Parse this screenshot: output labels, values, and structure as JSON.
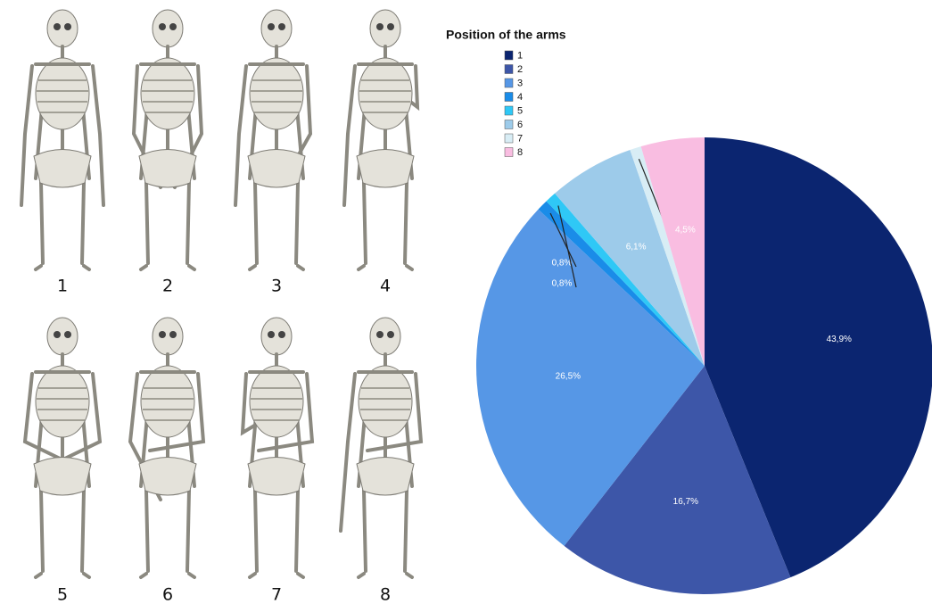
{
  "panel_labels": [
    "1",
    "2",
    "3",
    "4",
    "5",
    "6",
    "7",
    "8"
  ],
  "chart_data": {
    "type": "pie",
    "legend_title": "Position of the arms",
    "categories": [
      "1",
      "2",
      "3",
      "4",
      "5",
      "6",
      "7",
      "8"
    ],
    "values": [
      43.9,
      16.7,
      26.5,
      0.8,
      0.8,
      6.1,
      0.8,
      4.5
    ],
    "value_labels": [
      "43,9%",
      "16,7%",
      "26,5%",
      "0,8%",
      "0,8%",
      "6,1%",
      "0,8%",
      "4,5%"
    ],
    "colors": [
      "#0b2570",
      "#3d56a8",
      "#5697e6",
      "#1a8ce8",
      "#2fc8f6",
      "#9dcbea",
      "#d8edf5",
      "#f9bde1"
    ],
    "legend": "upper-left"
  }
}
